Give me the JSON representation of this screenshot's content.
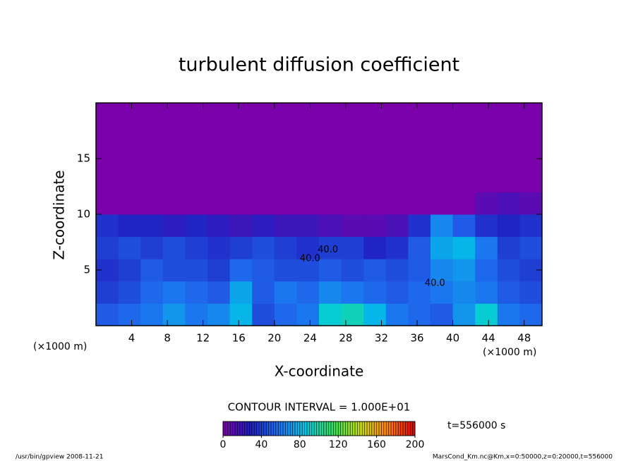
{
  "chart_data": {
    "type": "heatmap",
    "title": "turbulent diffusion coefficient",
    "xlabel": "X-coordinate",
    "ylabel": "Z-coordinate",
    "x_unit_label": "(×1000 m)",
    "contour_interval": "CONTOUR INTERVAL = 1.000E+01",
    "time_label": "t=556000 s",
    "footer_left": "/usr/bin/gpview   2008-11-21",
    "footer_right": "MarsCond_Km.nc@Km,x=0:50000,z=0:20000,t=556000",
    "xlim": [
      0,
      50
    ],
    "ylim": [
      0,
      20
    ],
    "xticks": [
      4,
      8,
      12,
      16,
      20,
      24,
      28,
      32,
      36,
      40,
      44,
      48
    ],
    "yticks": [
      5,
      10,
      15
    ],
    "x": [
      1.25,
      3.75,
      6.25,
      8.75,
      11.25,
      13.75,
      16.25,
      18.75,
      21.25,
      23.75,
      26.25,
      28.75,
      31.25,
      33.75,
      36.25,
      38.75,
      41.25,
      43.75,
      46.25,
      48.75
    ],
    "y": [
      1,
      3,
      5,
      7,
      9,
      11,
      13,
      15,
      17,
      19
    ],
    "z": [
      [
        50,
        55,
        60,
        70,
        60,
        65,
        80,
        45,
        55,
        60,
        90,
        95,
        80,
        60,
        55,
        50,
        70,
        90,
        60,
        55
      ],
      [
        40,
        45,
        55,
        60,
        55,
        50,
        75,
        50,
        60,
        55,
        65,
        60,
        55,
        50,
        55,
        60,
        65,
        60,
        50,
        45
      ],
      [
        35,
        40,
        50,
        45,
        45,
        40,
        55,
        50,
        45,
        45,
        50,
        45,
        50,
        45,
        50,
        65,
        70,
        55,
        45,
        40
      ],
      [
        40,
        45,
        40,
        45,
        40,
        35,
        40,
        45,
        40,
        35,
        40,
        40,
        30,
        35,
        50,
        75,
        80,
        60,
        40,
        45
      ],
      [
        35,
        30,
        30,
        25,
        30,
        25,
        20,
        25,
        20,
        20,
        15,
        10,
        10,
        15,
        35,
        65,
        50,
        35,
        30,
        35
      ],
      [
        0,
        0,
        0,
        0,
        0,
        0,
        0,
        0,
        0,
        0,
        0,
        0,
        0,
        0,
        0,
        0,
        0,
        10,
        15,
        10
      ],
      [
        0,
        0,
        0,
        0,
        0,
        0,
        0,
        0,
        0,
        0,
        0,
        0,
        0,
        0,
        0,
        0,
        0,
        0,
        0,
        0
      ],
      [
        0,
        0,
        0,
        0,
        0,
        0,
        0,
        0,
        0,
        0,
        0,
        0,
        0,
        0,
        0,
        0,
        0,
        0,
        0,
        0
      ],
      [
        0,
        0,
        0,
        0,
        0,
        0,
        0,
        0,
        0,
        0,
        0,
        0,
        0,
        0,
        0,
        0,
        0,
        0,
        0,
        0
      ],
      [
        0,
        0,
        0,
        0,
        0,
        0,
        0,
        0,
        0,
        0,
        0,
        0,
        0,
        0,
        0,
        0,
        0,
        0,
        0,
        0
      ]
    ],
    "annotations": [
      {
        "text": "40.0",
        "x": 24,
        "y": 6
      },
      {
        "text": "40.0",
        "x": 26,
        "y": 6.8
      },
      {
        "text": "40.0",
        "x": 38,
        "y": 3.8
      }
    ],
    "clim": [
      0,
      200
    ],
    "cticks": [
      0,
      40,
      80,
      120,
      160,
      200
    ],
    "colormap": [
      "#7a00aa",
      "#2020c0",
      "#1e6ef0",
      "#00c8e6",
      "#30e060",
      "#c8e000",
      "#ff8000",
      "#e00000"
    ]
  }
}
